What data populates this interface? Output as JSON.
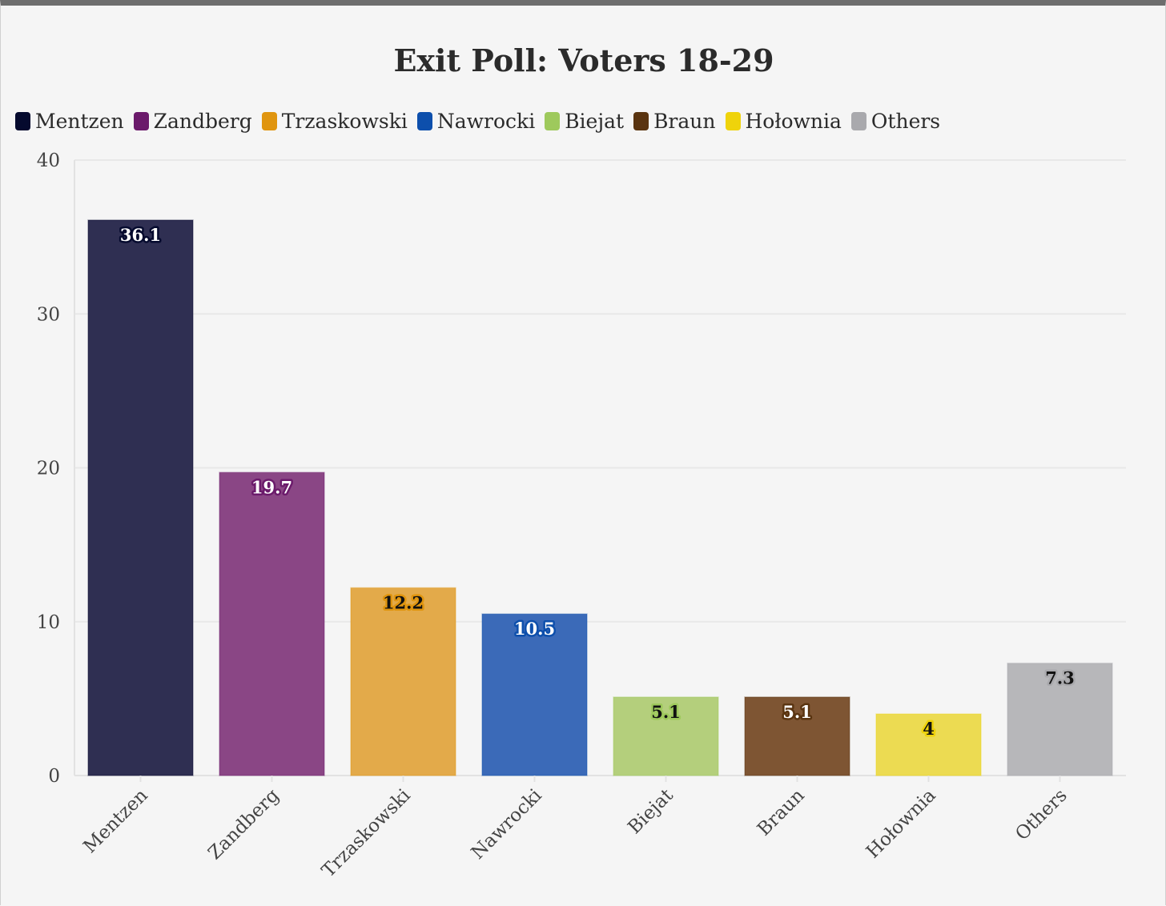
{
  "chart_data": {
    "type": "bar",
    "title": "Exit Poll: Voters 18-29",
    "xlabel": "",
    "ylabel": "",
    "ylim": [
      0,
      40
    ],
    "yticks": [
      0,
      10,
      20,
      30,
      40
    ],
    "grid": true,
    "legend_position": "top-left",
    "categories": [
      "Mentzen",
      "Zandberg",
      "Trzaskowski",
      "Nawrocki",
      "Biejat",
      "Braun",
      "Hołownia",
      "Others"
    ],
    "values": [
      36.1,
      19.7,
      12.2,
      10.5,
      5.1,
      5.1,
      4,
      7.3
    ],
    "value_labels": [
      "36.1",
      "19.7",
      "12.2",
      "10.5",
      "5.1",
      "5.1",
      "4",
      "7.3"
    ],
    "legend_colors": [
      "#050a2e",
      "#6b1a6b",
      "#e0950f",
      "#0d4fac",
      "#9ec95c",
      "#5a3410",
      "#efd30b",
      "#a9a9ad"
    ],
    "bar_colors": [
      "#2f2f52",
      "#8a4685",
      "#e3aa4a",
      "#3b6ab8",
      "#b4cf7c",
      "#7e5533",
      "#ecdb52",
      "#b7b7ba"
    ],
    "label_dark": [
      false,
      false,
      true,
      false,
      true,
      false,
      true,
      true
    ]
  }
}
